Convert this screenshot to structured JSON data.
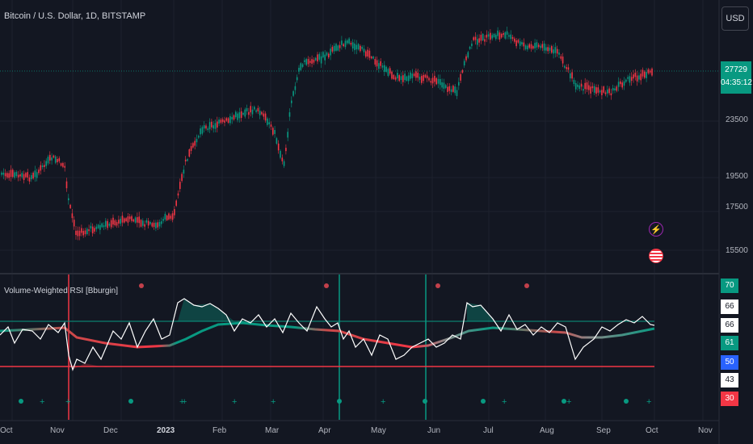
{
  "header": {
    "symbol_title": "Bitcoin / U.S. Dollar, 1D, BITSTAMP",
    "currency_button": "USD"
  },
  "price_axis": {
    "labels": [
      "23500",
      "19500",
      "17500",
      "15500"
    ],
    "last_price": "27729",
    "countdown": "04:35:12"
  },
  "indicator": {
    "title": "Volume-Weighted RSI [Bburgin]",
    "axis_tags": [
      {
        "text": "70",
        "bg": "#089981",
        "fg": "#ffffff"
      },
      {
        "text": "66",
        "bg": "#ffffff",
        "fg": "#131722"
      },
      {
        "text": "66",
        "bg": "#ffffff",
        "fg": "#131722"
      },
      {
        "text": "61",
        "bg": "#089981",
        "fg": "#ffffff"
      },
      {
        "text": "50",
        "bg": "#2962ff",
        "fg": "#ffffff"
      },
      {
        "text": "43",
        "bg": "#ffffff",
        "fg": "#131722"
      },
      {
        "text": "30",
        "bg": "#f23645",
        "fg": "#ffffff"
      }
    ]
  },
  "time_axis": {
    "labels": [
      "Oct",
      "Nov",
      "Dec",
      "2023",
      "Feb",
      "Mar",
      "Apr",
      "May",
      "Jun",
      "Jul",
      "Aug",
      "Sep",
      "Oct",
      "Nov"
    ]
  },
  "colors": {
    "background": "#131722",
    "up": "#089981",
    "down": "#f23645",
    "rsi_line": "#ffffff"
  },
  "icons": [
    "lightning-event-icon",
    "us-flag-event-icon"
  ]
}
